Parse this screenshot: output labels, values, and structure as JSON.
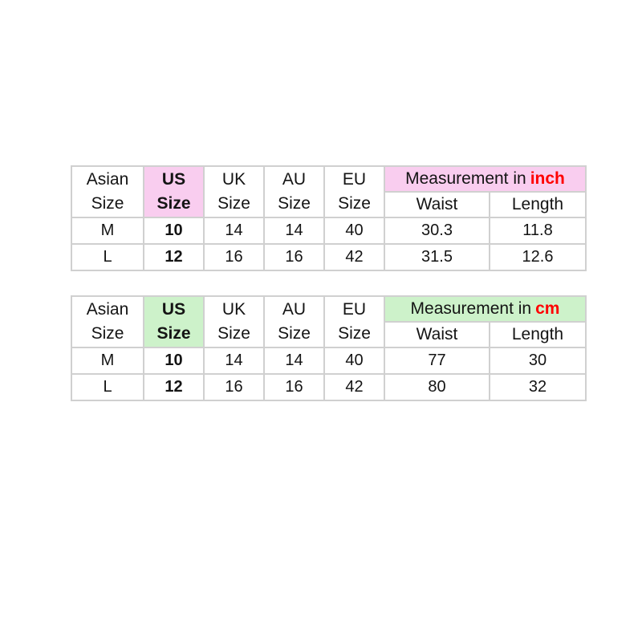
{
  "page": {
    "background": "#ffffff",
    "border_color": "#d0d0d0",
    "text_color": "#141414"
  },
  "tables": [
    {
      "name": "size-table-inch",
      "accent_color": "#f9cdef",
      "unit_color": "#ff0000",
      "headers": {
        "asian": "Asian\nSize",
        "us": "US\nSize",
        "uk": "UK\nSize",
        "au": "AU\nSize",
        "eu": "EU\nSize",
        "measurement_prefix": "Measurement in",
        "unit": "inch",
        "waist": "Waist",
        "length": "Length"
      },
      "rows": [
        {
          "asian": "M",
          "us": "10",
          "uk": "14",
          "au": "14",
          "eu": "40",
          "waist": "30.3",
          "length": "11.8"
        },
        {
          "asian": "L",
          "us": "12",
          "uk": "16",
          "au": "16",
          "eu": "42",
          "waist": "31.5",
          "length": "12.6"
        }
      ]
    },
    {
      "name": "size-table-cm",
      "accent_color": "#cdf2ca",
      "unit_color": "#ff0000",
      "headers": {
        "asian": "Asian\nSize",
        "us": "US\nSize",
        "uk": "UK\nSize",
        "au": "AU\nSize",
        "eu": "EU\nSize",
        "measurement_prefix": "Measurement in",
        "unit": "cm",
        "waist": "Waist",
        "length": "Length"
      },
      "rows": [
        {
          "asian": "M",
          "us": "10",
          "uk": "14",
          "au": "14",
          "eu": "40",
          "waist": "77",
          "length": "30"
        },
        {
          "asian": "L",
          "us": "12",
          "uk": "16",
          "au": "16",
          "eu": "42",
          "waist": "80",
          "length": "32"
        }
      ]
    }
  ],
  "chart_data": [
    {
      "type": "table",
      "title": "Measurement in inch",
      "unit": "inch",
      "columns": [
        "Asian Size",
        "US Size",
        "UK Size",
        "AU Size",
        "EU Size",
        "Waist",
        "Length"
      ],
      "rows": [
        [
          "M",
          "10",
          "14",
          "14",
          "40",
          "30.3",
          "11.8"
        ],
        [
          "L",
          "12",
          "16",
          "16",
          "42",
          "31.5",
          "12.6"
        ]
      ]
    },
    {
      "type": "table",
      "title": "Measurement in cm",
      "unit": "cm",
      "columns": [
        "Asian Size",
        "US Size",
        "UK Size",
        "AU Size",
        "EU Size",
        "Waist",
        "Length"
      ],
      "rows": [
        [
          "M",
          "10",
          "14",
          "14",
          "40",
          "77",
          "30"
        ],
        [
          "L",
          "12",
          "16",
          "16",
          "42",
          "80",
          "32"
        ]
      ]
    }
  ]
}
